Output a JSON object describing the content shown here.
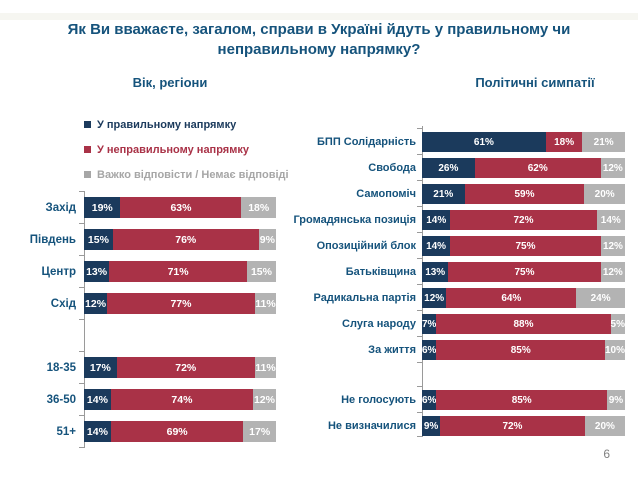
{
  "page": {
    "title": "Як Ви вважаєте, загалом, справи в Україні йдуть у правильному чи неправильному напрямку?",
    "page_number": "6"
  },
  "legend": {
    "items": [
      {
        "label": "У правильному напрямку",
        "color": "#1b3a5c"
      },
      {
        "label": "У неправильному напрямку",
        "color": "#a93247"
      },
      {
        "label": "Важко відповісти / Немає відповіді",
        "color": "#a6a6a6"
      }
    ]
  },
  "chart_data": [
    {
      "type": "bar",
      "orientation": "horizontal_stacked",
      "title": "Вік, регіони",
      "unit": "%",
      "xlim": [
        0,
        100
      ],
      "value_labels": "inside",
      "legend_position": "top-left",
      "categories": [
        "Захід",
        "Південь",
        "Центр",
        "Схід",
        "",
        "18-35",
        "36-50",
        "51+"
      ],
      "series": [
        {
          "name": "У правильному напрямку",
          "color": "#1b3a5c",
          "values": [
            19,
            15,
            13,
            12,
            null,
            17,
            14,
            14
          ]
        },
        {
          "name": "У неправильному напрямку",
          "color": "#a93247",
          "values": [
            63,
            76,
            71,
            77,
            null,
            72,
            74,
            69
          ]
        },
        {
          "name": "Важко відповісти / Немає відповіді",
          "color": "#b3b3b3",
          "values": [
            18,
            9,
            15,
            11,
            null,
            11,
            12,
            17
          ]
        }
      ]
    },
    {
      "type": "bar",
      "orientation": "horizontal_stacked",
      "title": "Політичні симпатії",
      "unit": "%",
      "xlim": [
        0,
        100
      ],
      "value_labels": "inside",
      "categories": [
        "БПП Солідарність",
        "Свобода",
        "Самопоміч",
        "Громадянська позиція",
        "Опозиційний блок",
        "Батьківщина",
        "Радикальна партія",
        "Слуга народу",
        "За життя",
        "",
        "Не голосують",
        "Не визначилися"
      ],
      "series": [
        {
          "name": "У правильному напрямку",
          "color": "#1b3a5c",
          "values": [
            61,
            26,
            21,
            14,
            14,
            13,
            12,
            7,
            6,
            null,
            6,
            9
          ]
        },
        {
          "name": "У неправильному напрямку",
          "color": "#a93247",
          "values": [
            18,
            62,
            59,
            72,
            75,
            75,
            64,
            88,
            85,
            null,
            85,
            72
          ]
        },
        {
          "name": "Важко відповісти / Немає відповіді",
          "color": "#b3b3b3",
          "values": [
            21,
            12,
            20,
            14,
            12,
            12,
            24,
            5,
            10,
            null,
            9,
            20
          ]
        }
      ]
    }
  ]
}
